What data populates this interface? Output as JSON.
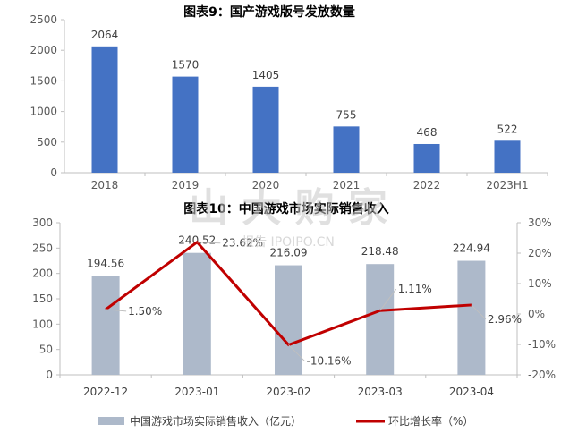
{
  "chart_data": [
    {
      "type": "bar",
      "title": "图表9：国产游戏版号发放数量",
      "categories": [
        "2018",
        "2019",
        "2020",
        "2021",
        "2022",
        "2023H1"
      ],
      "values": [
        2064,
        1570,
        1405,
        755,
        468,
        522
      ],
      "ylim": [
        0,
        2500
      ],
      "yticks": [
        0,
        500,
        1000,
        1500,
        2000,
        2500
      ],
      "bar_color": "#4472C4",
      "grid": false
    },
    {
      "type": "bar+line",
      "title": "图表10：中国游戏市场实际销售收入",
      "categories": [
        "2022-12",
        "2023-01",
        "2023-02",
        "2023-03",
        "2023-04"
      ],
      "series": [
        {
          "name": "中国游戏市场实际销售收入（亿元）",
          "type": "bar",
          "axis": "left",
          "values": [
            194.56,
            240.52,
            216.09,
            218.48,
            224.94
          ],
          "labels": [
            "194.56",
            "240.52",
            "216.09",
            "218.48",
            "224.94"
          ],
          "color": "#ADB9CA"
        },
        {
          "name": "环比增长率（%）",
          "type": "line",
          "axis": "right",
          "values": [
            1.5,
            23.62,
            -10.16,
            1.11,
            2.96
          ],
          "labels": [
            "1.50%",
            "23.62%",
            "-10.16%",
            "1.11%",
            "2.96%"
          ],
          "color": "#C00000"
        }
      ],
      "ylim": [
        0,
        300
      ],
      "yticks": [
        0,
        50,
        100,
        150,
        200,
        250,
        300
      ],
      "y2lim": [
        -20,
        30
      ],
      "y2ticks": [
        "-20%",
        "-10%",
        "0%",
        "10%",
        "20%",
        "30%"
      ],
      "y2values": [
        -20,
        -10,
        0,
        10,
        20,
        30
      ],
      "legend_position": "bottom",
      "grid": false
    }
  ],
  "watermark": {
    "main": "山 大 购 家",
    "sub": "报告 IPOIPO.CN"
  }
}
